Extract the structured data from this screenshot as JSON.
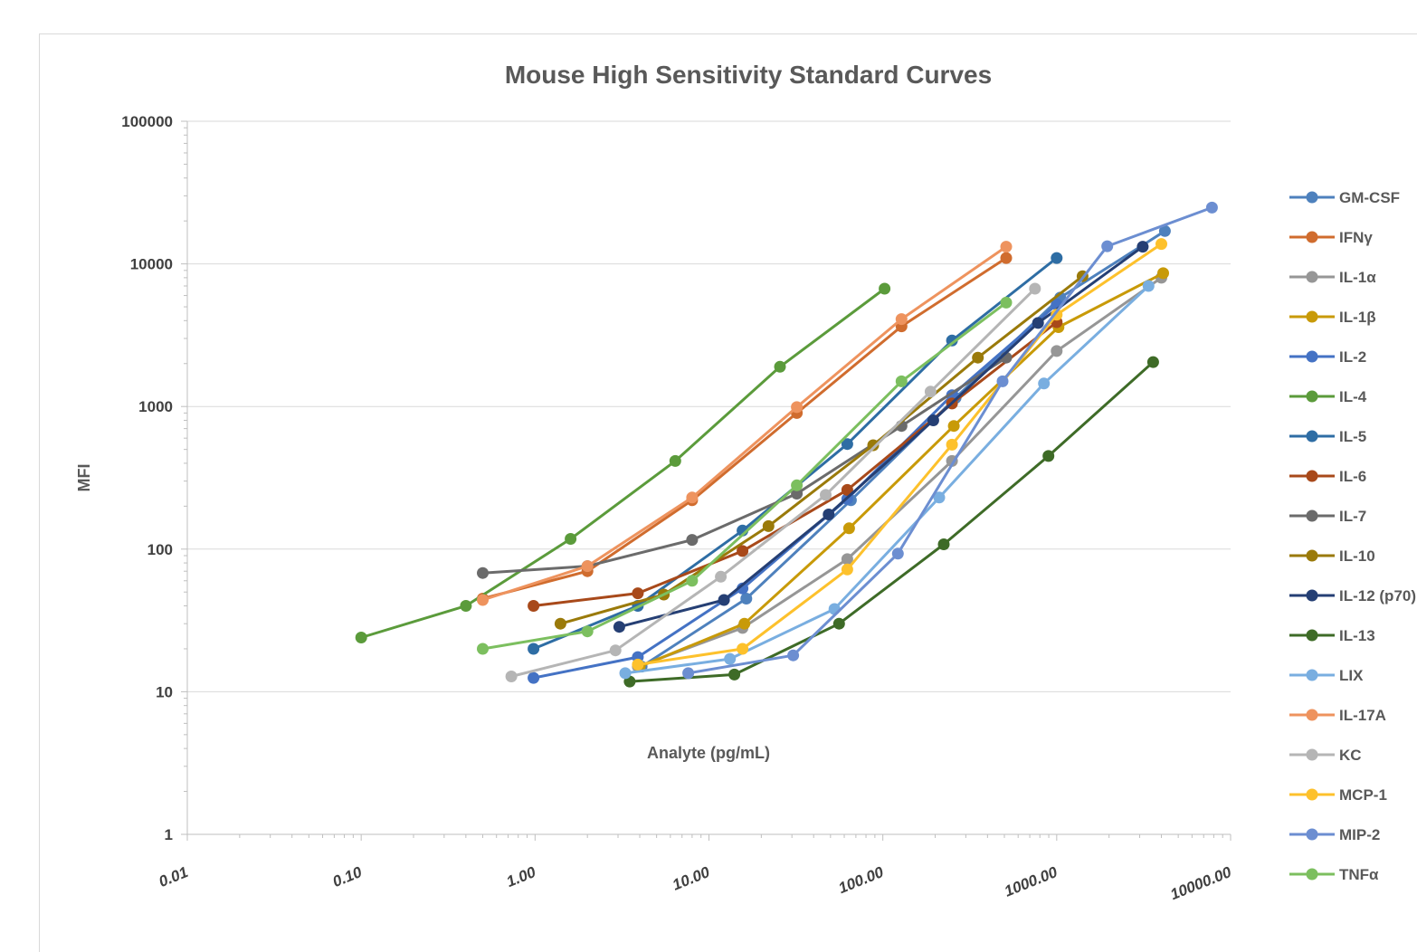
{
  "chart_data": {
    "type": "line",
    "title": "Mouse High Sensitivity Standard Curves",
    "xlabel": "Analyte (pg/mL)",
    "ylabel": "MFI",
    "x_scale": "log",
    "y_scale": "log",
    "xlim": [
      0.01,
      10000
    ],
    "ylim": [
      1,
      100000
    ],
    "x_ticks": [
      "0.01",
      "0.10",
      "1.00",
      "10.00",
      "100.00",
      "1000.00",
      "10000.00"
    ],
    "y_ticks": [
      "1",
      "10",
      "100",
      "1000",
      "10000",
      "100000"
    ],
    "grid": "horizontal major",
    "legend_position": "right",
    "markers": true,
    "series": [
      {
        "name": "GM-CSF",
        "color": "#4e81bd",
        "x": [
          4.1,
          16.4,
          65.5,
          262,
          1048,
          4190
        ],
        "y": [
          15,
          45,
          220,
          1150,
          5800,
          17000
        ]
      },
      {
        "name": "IFNγ",
        "color": "#d06c2e",
        "x": [
          0.5,
          2,
          8,
          32,
          128,
          512
        ],
        "y": [
          45,
          70,
          220,
          900,
          3650,
          11000
        ]
      },
      {
        "name": "IL-1α",
        "color": "#969696",
        "x": [
          3.9,
          15.6,
          62.5,
          250,
          1000,
          4000
        ],
        "y": [
          15,
          28,
          85,
          415,
          2450,
          8000
        ]
      },
      {
        "name": "IL-1β",
        "color": "#c89a08",
        "x": [
          4,
          16,
          64,
          256,
          1024,
          4096
        ],
        "y": [
          15,
          30,
          140,
          730,
          3600,
          8600
        ]
      },
      {
        "name": "IL-2",
        "color": "#4472c4",
        "x": [
          0.98,
          3.9,
          15.6,
          62.5,
          250,
          1000
        ],
        "y": [
          12.5,
          17.5,
          53,
          225,
          1200,
          5200
        ]
      },
      {
        "name": "IL-4",
        "color": "#5b9b3b",
        "x": [
          0.1,
          0.4,
          1.6,
          6.4,
          25.6,
          102.4
        ],
        "y": [
          24,
          40,
          118,
          415,
          1900,
          6700
        ]
      },
      {
        "name": "IL-5",
        "color": "#2e6da4",
        "x": [
          0.98,
          3.9,
          15.6,
          62.5,
          250,
          1000
        ],
        "y": [
          20,
          40,
          135,
          545,
          2900,
          11000
        ]
      },
      {
        "name": "IL-6",
        "color": "#a8491a",
        "x": [
          0.98,
          3.9,
          15.6,
          62.5,
          250,
          1000
        ],
        "y": [
          40,
          49,
          97,
          260,
          1050,
          3900
        ]
      },
      {
        "name": "IL-7",
        "color": "#6b6b6b",
        "x": [
          0.5,
          2,
          8,
          32,
          128,
          512
        ],
        "y": [
          68,
          76,
          116,
          245,
          730,
          2200
        ]
      },
      {
        "name": "IL-10",
        "color": "#9a7a0a",
        "x": [
          1.4,
          5.5,
          22,
          88,
          352,
          1408
        ],
        "y": [
          30,
          48,
          145,
          535,
          2200,
          8200
        ]
      },
      {
        "name": "IL-12 (p70)",
        "color": "#253f74",
        "x": [
          3.05,
          12.2,
          48.8,
          195,
          781,
          3125
        ],
        "y": [
          28.5,
          44,
          175,
          800,
          3850,
          13200
        ]
      },
      {
        "name": "IL-13",
        "color": "#3e6b27",
        "x": [
          3.5,
          14,
          56,
          224,
          896,
          3584
        ],
        "y": [
          11.8,
          13.2,
          30,
          108,
          450,
          2050
        ]
      },
      {
        "name": "LIX",
        "color": "#79aee0",
        "x": [
          3.3,
          13.2,
          52.7,
          211,
          844,
          3375
        ],
        "y": [
          13.5,
          17,
          38,
          230,
          1450,
          7000
        ]
      },
      {
        "name": "IL-17A",
        "color": "#ee935e",
        "x": [
          0.5,
          2,
          8,
          32,
          128,
          512
        ],
        "y": [
          44,
          76,
          230,
          990,
          4100,
          13200
        ]
      },
      {
        "name": "KC",
        "color": "#b5b5b5",
        "x": [
          0.73,
          2.9,
          11.7,
          46.9,
          188,
          750
        ],
        "y": [
          12.8,
          19.5,
          64,
          240,
          1270,
          6700
        ]
      },
      {
        "name": "MCP-1",
        "color": "#fdc12c",
        "x": [
          3.9,
          15.6,
          62.5,
          250,
          1000,
          4000
        ],
        "y": [
          15.5,
          20,
          72,
          540,
          4400,
          13800
        ]
      },
      {
        "name": "MIP-2",
        "color": "#6c8ed1",
        "x": [
          7.6,
          30.5,
          122,
          488,
          1953,
          7813
        ],
        "y": [
          13.5,
          18,
          93,
          1500,
          13300,
          24800
        ]
      },
      {
        "name": "TNFα",
        "color": "#7cbf5f",
        "x": [
          0.5,
          2,
          8,
          32,
          128,
          512
        ],
        "y": [
          20,
          26.5,
          60,
          280,
          1500,
          5350
        ]
      }
    ]
  }
}
